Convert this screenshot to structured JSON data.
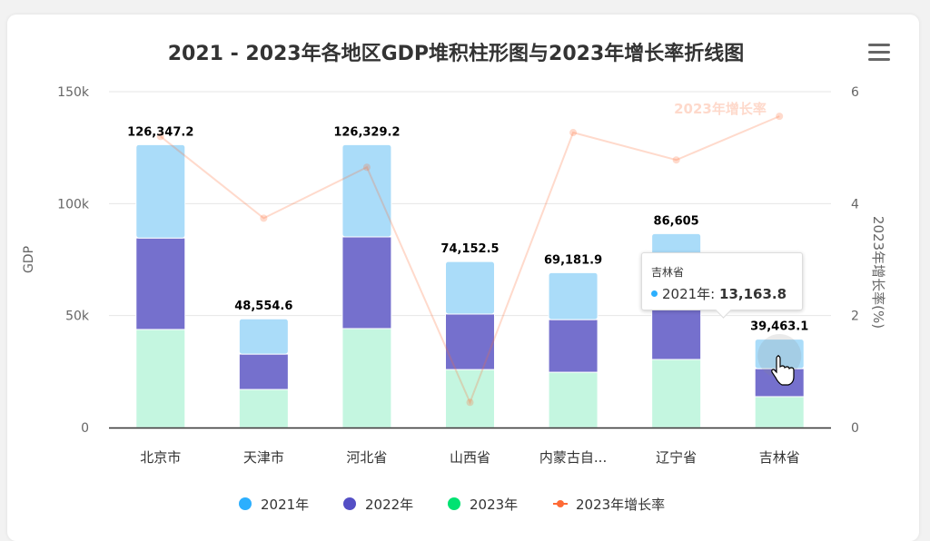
{
  "chart_data": {
    "type": "bar",
    "stacked": true,
    "title": "2021 - 2023年各地区GDP堆积柱形图与2023年增长率折线图",
    "categories": [
      "北京市",
      "天津市",
      "河北省",
      "山西省",
      "内蒙古自...",
      "辽宁省",
      "吉林省"
    ],
    "series": [
      {
        "name": "2021年",
        "type": "bar",
        "color": "#2caffe",
        "values": [
          41700,
          15754.6,
          41200,
          23452.5,
          20981.9,
          26905,
          13163.8
        ]
      },
      {
        "name": "2022年",
        "type": "bar",
        "color": "#544fc5",
        "values": [
          40847.2,
          15800,
          40929.2,
          24800,
          23500,
          29300,
          12499.3
        ]
      },
      {
        "name": "2023年",
        "type": "bar",
        "color": "#00e272",
        "values": [
          43800,
          17000,
          44200,
          25900,
          24700,
          30400,
          13800
        ]
      },
      {
        "name": "2023年增长率",
        "type": "line",
        "axis": "right",
        "color": "#fe6a35",
        "values": [
          5.2,
          3.74,
          4.65,
          0.45,
          5.27,
          4.78,
          5.56
        ]
      }
    ],
    "totals": [
      "126,347.2",
      "48,554.6",
      "126,329.2",
      "74,152.5",
      "69,181.9",
      "86,605",
      "39,463.1"
    ],
    "ylabel": "GDP",
    "ylim": [
      0,
      150000
    ],
    "yticks": [
      "0",
      "50k",
      "100k",
      "150k"
    ],
    "y2label": "2023年增长率(%)",
    "y2lim": [
      0,
      6
    ],
    "y2ticks": [
      "0",
      "2",
      "4",
      "6"
    ],
    "line_label": "2023年增长率",
    "grid": true,
    "legend": "bottom"
  },
  "tooltip": {
    "title": "吉林省",
    "series": "2021年:",
    "value": "13,163.8"
  },
  "menu_icon": "hamburger-menu-icon"
}
